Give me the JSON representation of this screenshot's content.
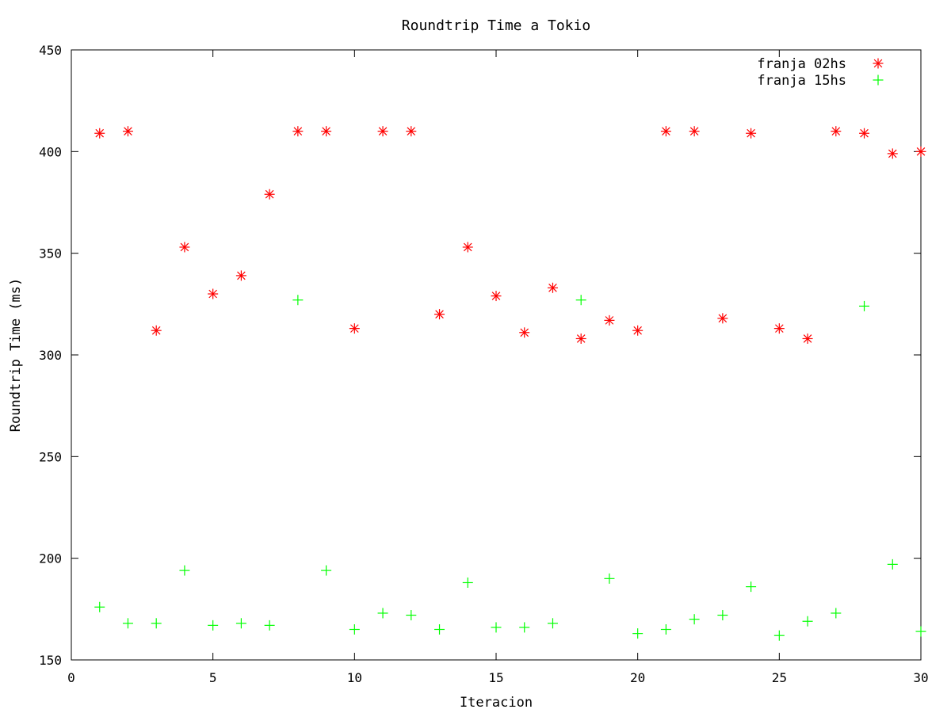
{
  "chart_data": {
    "type": "scatter",
    "title": "Roundtrip Time a Tokio",
    "xlabel": "Iteracion",
    "ylabel": "Roundtrip Time (ms)",
    "xlim": [
      0,
      30
    ],
    "ylim": [
      150,
      450
    ],
    "xticks": [
      0,
      5,
      10,
      15,
      20,
      25,
      30
    ],
    "yticks": [
      150,
      200,
      250,
      300,
      350,
      400,
      450
    ],
    "grid": false,
    "legend_position": "top-right",
    "series": [
      {
        "name": "franja 02hs",
        "marker": "asterisk",
        "color": "#ff0000",
        "x": [
          1,
          2,
          3,
          4,
          5,
          6,
          7,
          8,
          9,
          10,
          11,
          12,
          13,
          14,
          15,
          16,
          17,
          18,
          19,
          20,
          21,
          22,
          23,
          24,
          25,
          26,
          27,
          28,
          29,
          30
        ],
        "y": [
          409,
          410,
          312,
          353,
          330,
          339,
          379,
          410,
          410,
          313,
          410,
          410,
          320,
          353,
          329,
          311,
          333,
          308,
          317,
          312,
          410,
          410,
          318,
          409,
          313,
          308,
          410,
          409,
          399,
          400
        ]
      },
      {
        "name": "franja 15hs",
        "marker": "plus",
        "color": "#00ff00",
        "x": [
          1,
          2,
          3,
          4,
          5,
          6,
          7,
          8,
          9,
          10,
          11,
          12,
          13,
          14,
          15,
          16,
          17,
          18,
          19,
          20,
          21,
          22,
          23,
          24,
          25,
          26,
          27,
          28,
          29,
          30
        ],
        "y": [
          176,
          168,
          168,
          194,
          167,
          168,
          167,
          327,
          194,
          165,
          173,
          172,
          165,
          188,
          166,
          166,
          168,
          327,
          190,
          163,
          165,
          170,
          172,
          186,
          162,
          169,
          173,
          324,
          197,
          164
        ]
      }
    ]
  }
}
